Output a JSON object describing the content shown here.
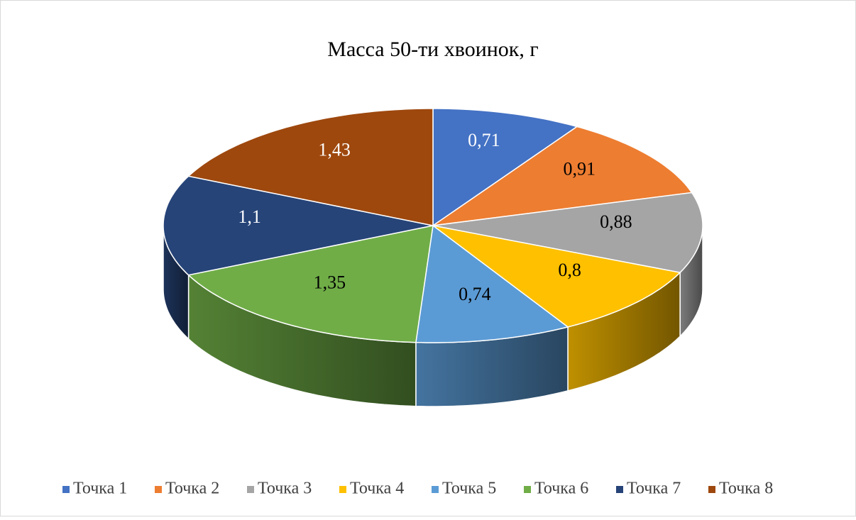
{
  "chart_data": {
    "type": "pie3d",
    "title": "Масса 50-ти хвоинок, г",
    "categories": [
      "Точка 1",
      "Точка 2",
      "Точка 3",
      "Точка 4",
      "Точка 5",
      "Точка 6",
      "Точка 7",
      "Точка 8"
    ],
    "values": [
      0.71,
      0.91,
      0.88,
      0.8,
      0.74,
      1.35,
      1.1,
      1.43
    ],
    "value_labels": [
      "0,71",
      "0,91",
      "0,88",
      "0,8",
      "0,74",
      "1,35",
      "1,1",
      "1,43"
    ],
    "colors": [
      "#4472c4",
      "#ed7d31",
      "#a5a5a5",
      "#ffc000",
      "#5b9bd5",
      "#70ad47",
      "#264478",
      "#9e480e"
    ],
    "legend": "bottom"
  }
}
